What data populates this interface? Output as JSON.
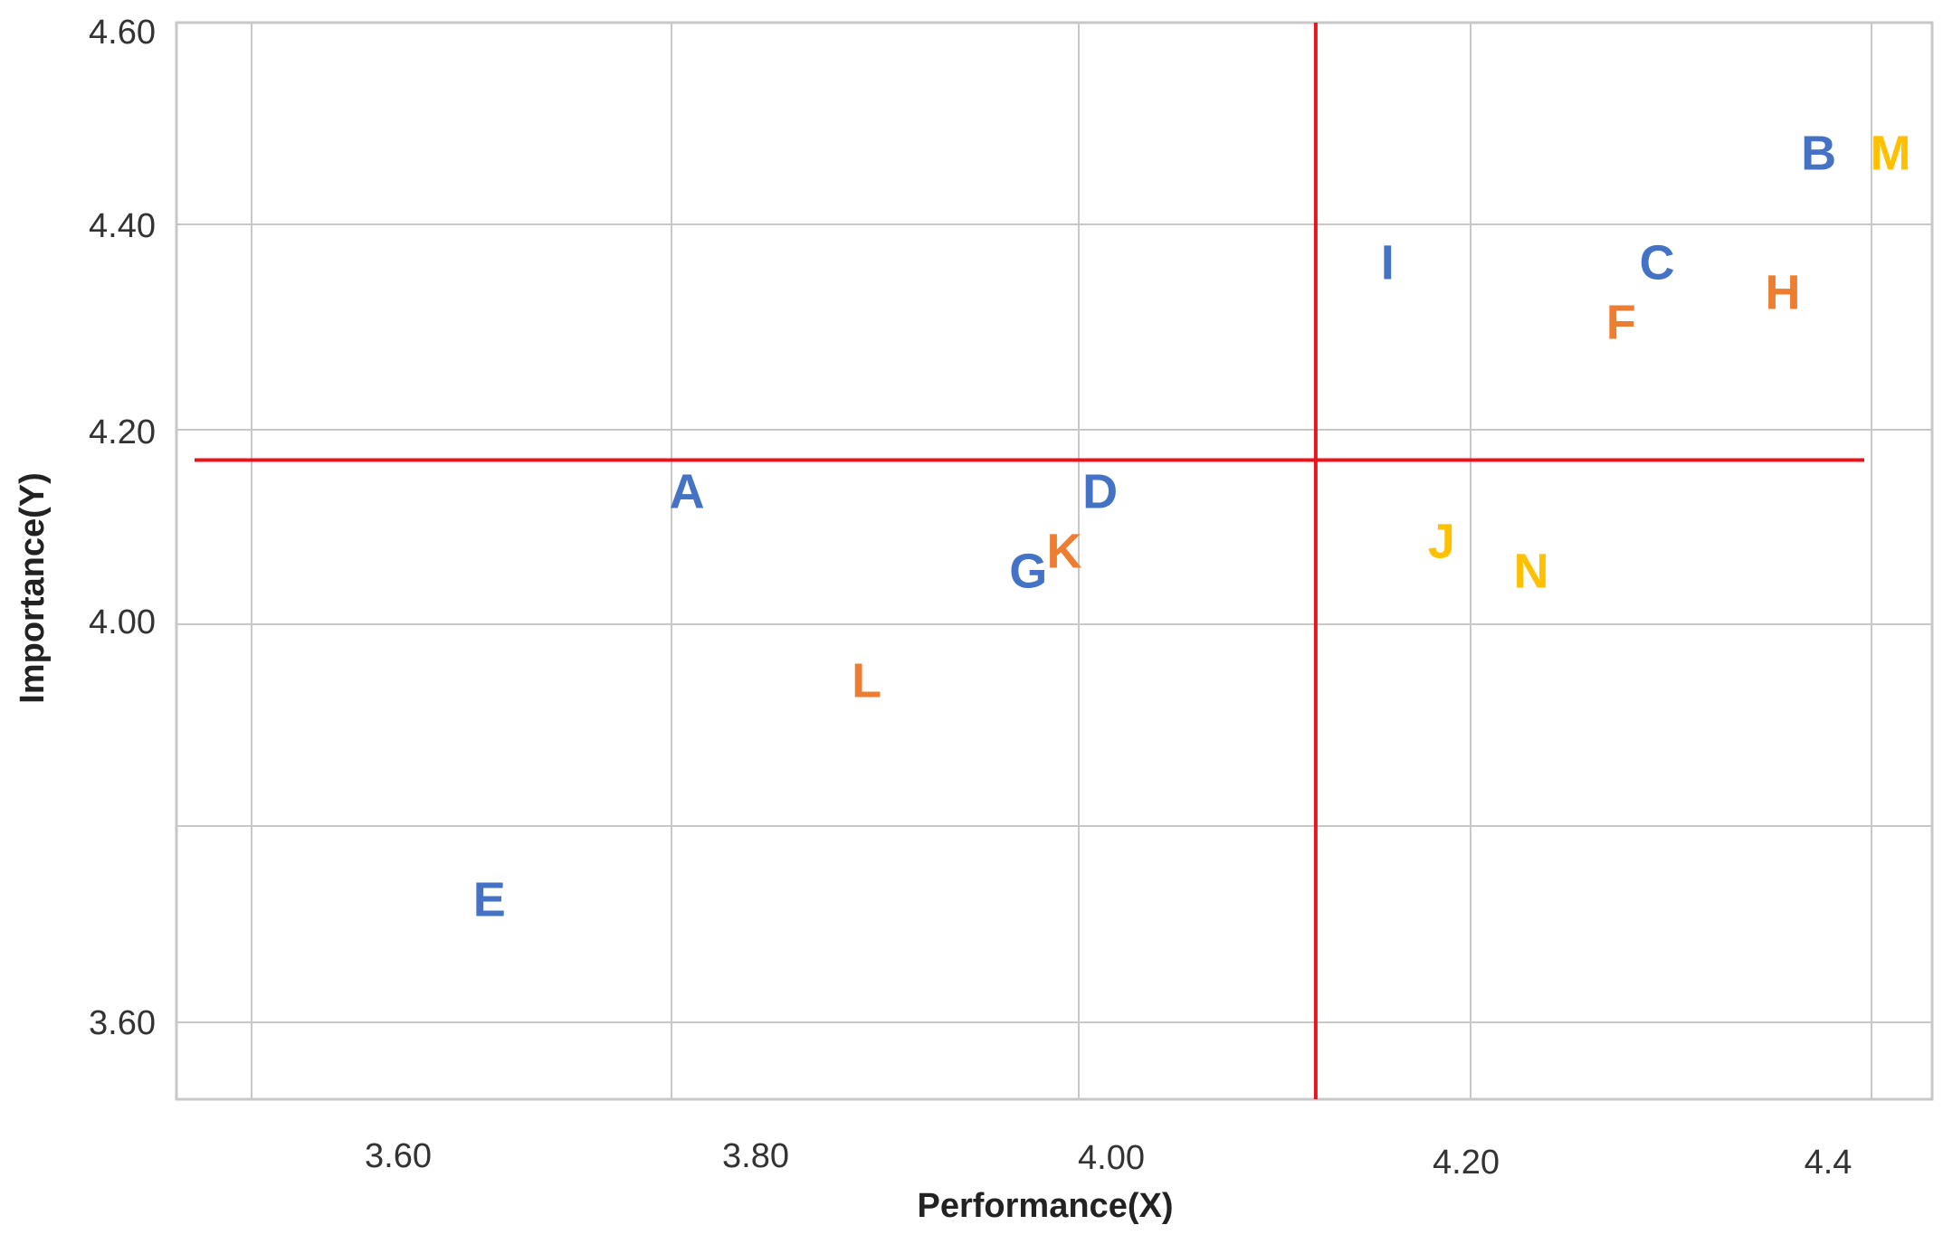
{
  "chart_data": {
    "type": "scatter",
    "title": "",
    "xlabel": "Performance(X)",
    "ylabel": "Importance(Y)",
    "x_ticks": [
      "3.60",
      "3.80",
      "4.00",
      "4.20",
      "4.4"
    ],
    "y_ticks": [
      "4.60",
      "4.40",
      "4.20",
      "4.00",
      "3.60"
    ],
    "grid": true,
    "reference_lines": {
      "x": 4.01,
      "y": 4.165,
      "color": "#e8141b"
    },
    "colors": {
      "blue": "#4472c4",
      "orange": "#ed7d31",
      "yellow": "#ffc000",
      "grid": "#c8c8c8"
    },
    "points": [
      {
        "label": "A",
        "x": 3.66,
        "y": 4.13,
        "color": "#4472c4"
      },
      {
        "label": "B",
        "x": 4.29,
        "y": 4.47,
        "color": "#4472c4"
      },
      {
        "label": "C",
        "x": 4.2,
        "y": 4.36,
        "color": "#4472c4"
      },
      {
        "label": "D",
        "x": 3.89,
        "y": 4.13,
        "color": "#4472c4"
      },
      {
        "label": "E",
        "x": 3.55,
        "y": 3.72,
        "color": "#4472c4"
      },
      {
        "label": "F",
        "x": 4.18,
        "y": 4.3,
        "color": "#ed7d31"
      },
      {
        "label": "G",
        "x": 3.85,
        "y": 4.05,
        "color": "#4472c4"
      },
      {
        "label": "H",
        "x": 4.27,
        "y": 4.33,
        "color": "#ed7d31"
      },
      {
        "label": "I",
        "x": 4.05,
        "y": 4.36,
        "color": "#4472c4"
      },
      {
        "label": "J",
        "x": 4.08,
        "y": 4.08,
        "color": "#ffc000"
      },
      {
        "label": "K",
        "x": 3.87,
        "y": 4.07,
        "color": "#ed7d31"
      },
      {
        "label": "L",
        "x": 3.76,
        "y": 3.94,
        "color": "#ed7d31"
      },
      {
        "label": "M",
        "x": 4.33,
        "y": 4.47,
        "color": "#ffc000"
      },
      {
        "label": "N",
        "x": 4.13,
        "y": 4.05,
        "color": "#ffc000"
      }
    ]
  }
}
